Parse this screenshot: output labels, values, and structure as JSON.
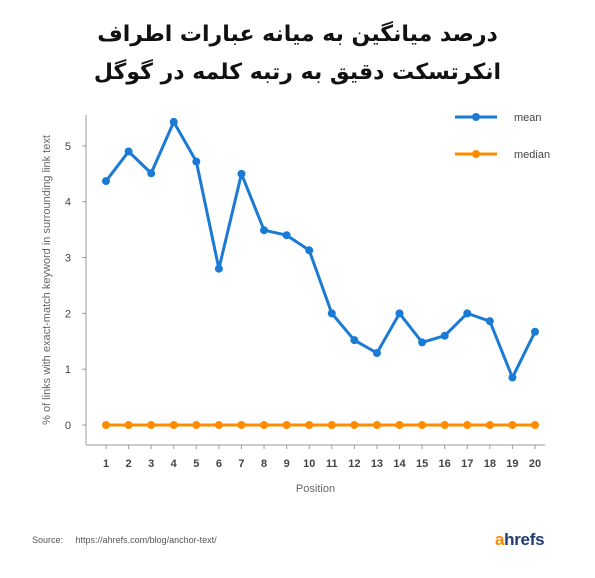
{
  "title_line1": "درصد میانگین به میانه عبارات اطراف",
  "title_line2": "انکرتسکت دقیق به رتبه کلمه در گوگل",
  "source_label": "Source:",
  "source_url": "https://ahrefs.com/blog/anchor-text/",
  "brand": {
    "accent": "a",
    "rest": "hrefs"
  },
  "colors": {
    "mean": "#1a7ad4",
    "median": "#ff8c00",
    "axis": "#9a9a9a"
  },
  "chart_data": {
    "type": "line",
    "xlabel": "Position",
    "ylabel": "% of links with exact-match keyword in surrounding link text",
    "x": [
      1,
      2,
      3,
      4,
      5,
      6,
      7,
      8,
      9,
      10,
      11,
      12,
      13,
      14,
      15,
      16,
      17,
      18,
      19,
      20
    ],
    "ylim": [
      0,
      5.5
    ],
    "yticks": [
      0,
      1,
      2,
      3,
      4,
      5
    ],
    "grid": false,
    "legend": "top-right",
    "series": [
      {
        "name": "mean",
        "values": [
          4.37,
          4.9,
          4.51,
          5.43,
          4.72,
          2.8,
          4.5,
          3.49,
          3.4,
          3.13,
          2.0,
          1.52,
          1.29,
          2.0,
          1.48,
          1.6,
          2.0,
          1.86,
          0.85,
          1.67
        ]
      },
      {
        "name": "median",
        "values": [
          0,
          0,
          0,
          0,
          0,
          0,
          0,
          0,
          0,
          0,
          0,
          0,
          0,
          0,
          0,
          0,
          0,
          0,
          0,
          0
        ]
      }
    ]
  }
}
